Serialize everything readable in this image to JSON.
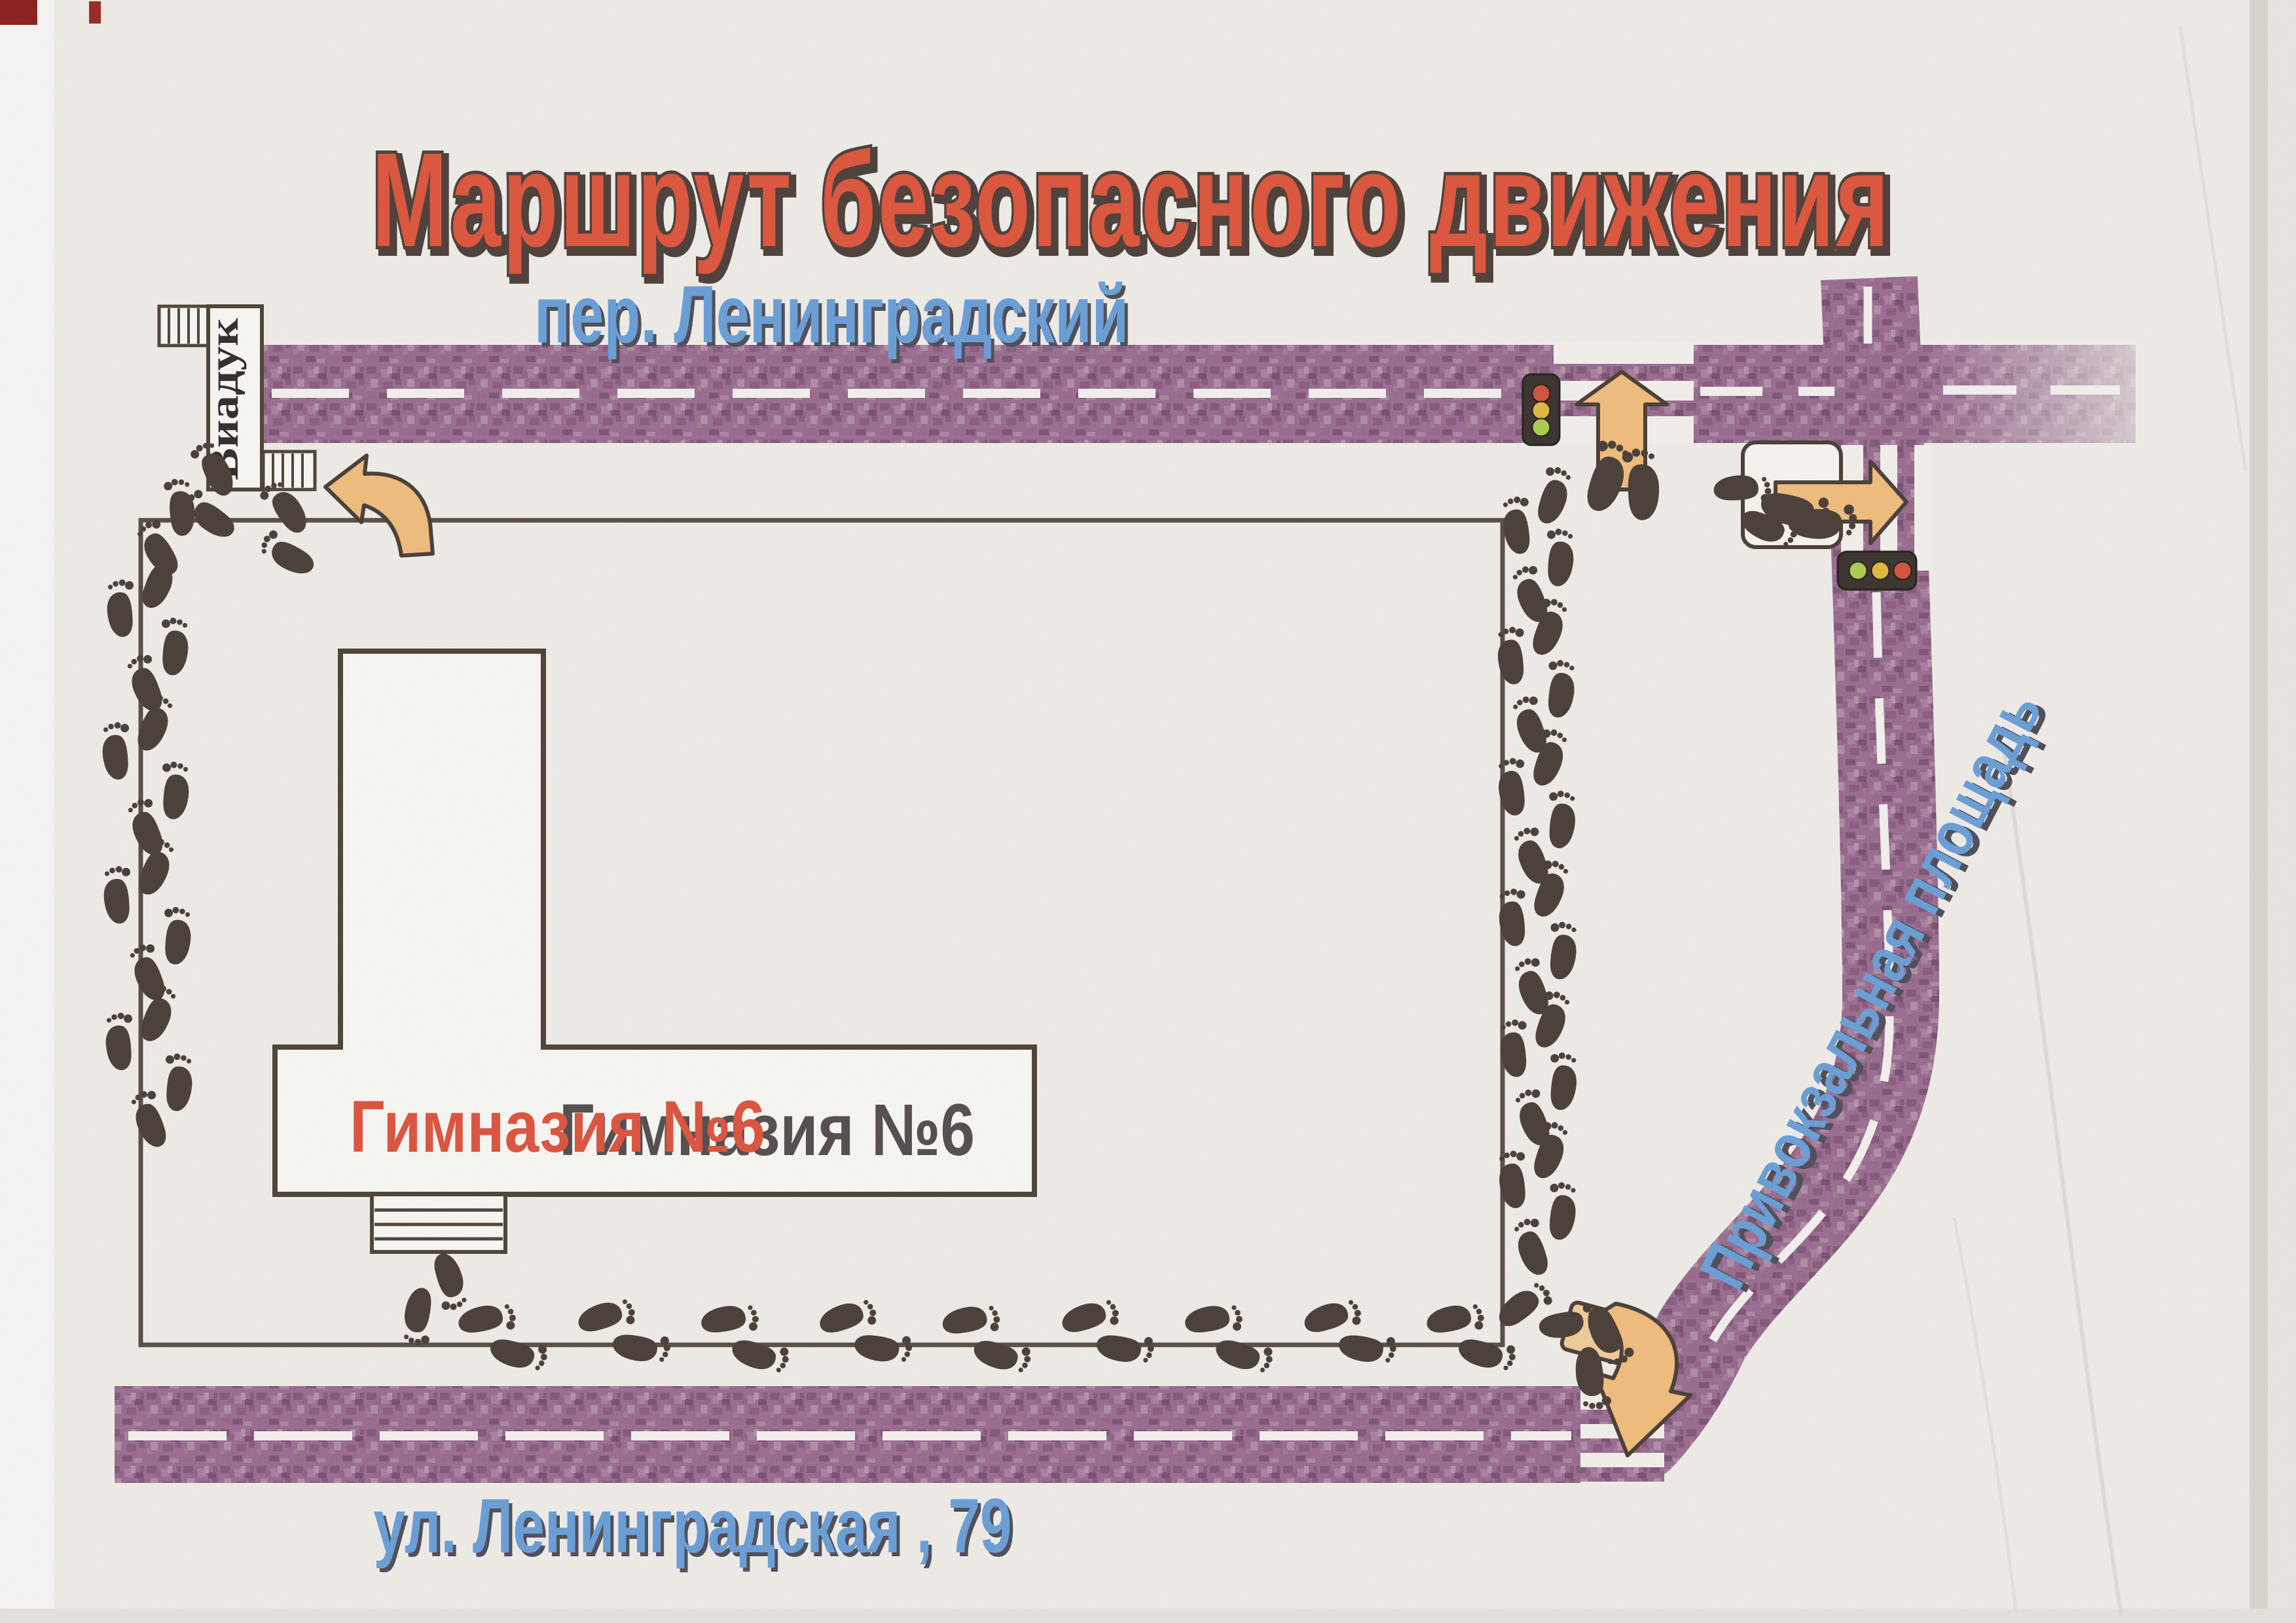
{
  "title": "Маршрут безопасного движения",
  "streets": {
    "top": "пер. Ленинградский",
    "bottom": "ул. Ленинградская , 79",
    "right": "Привокзальная площадь"
  },
  "buildings": {
    "school": "Гимназия №6",
    "viaduct": "Виадук"
  },
  "icons": {
    "footprints": "footprint-trail-icon",
    "traffic_light": "traffic-light-icon",
    "route_arrow": "direction-arrow-icon",
    "crossing": "pedestrian-crossing-icon",
    "stairs": "viaduct-stairs-icon"
  },
  "colors": {
    "paper": "#f3f1ec",
    "road": "#9b6f92",
    "road_speckle": "#7c5173",
    "title_text": "#e0563d",
    "street_text": "#6aa2da",
    "school_text": "#e05540",
    "viaduct_text": "#332d27",
    "footprint": "#4b4038",
    "arrow": "#f3c07e",
    "arrow_outline": "#4a4038",
    "crossing_white": "#f7f5f0",
    "dash_white": "#f7f5f1",
    "light_red": "#d4543e",
    "light_yellow": "#e2bc40",
    "light_green": "#aed14e",
    "light_body": "#3a332d",
    "outline": "#51473d",
    "corner_mark": "#8c211d"
  }
}
